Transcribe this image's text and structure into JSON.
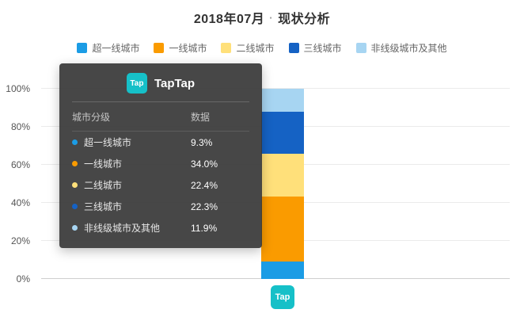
{
  "header": {
    "title_date": "2018年07月",
    "title_dot": "·",
    "title_text": "现状分析"
  },
  "chart_data": {
    "type": "bar",
    "stacked": true,
    "categories": [
      "TapTap"
    ],
    "series": [
      {
        "name": "超一线城市",
        "color": "#1b9ce5",
        "values": [
          9.3
        ]
      },
      {
        "name": "一线城市",
        "color": "#fa9b00",
        "values": [
          34.0
        ]
      },
      {
        "name": "二线城市",
        "color": "#ffe07a",
        "values": [
          22.4
        ]
      },
      {
        "name": "三线城市",
        "color": "#1562c4",
        "values": [
          22.3
        ]
      },
      {
        "name": "非线级城市及其他",
        "color": "#a7d5f2",
        "values": [
          11.9
        ]
      }
    ],
    "title": "2018年07月 · 现状分析",
    "xlabel": "",
    "ylabel": "",
    "ylim": [
      0,
      100
    ],
    "yticks": [
      "0%",
      "20%",
      "40%",
      "60%",
      "80%",
      "100%"
    ],
    "grid": true,
    "legend_position": "top"
  },
  "tooltip": {
    "brand": "TapTap",
    "brand_icon_text": "Tap",
    "col_headers": [
      "城市分级",
      "数据"
    ],
    "rows": [
      {
        "label": "超一线城市",
        "value": "9.3%"
      },
      {
        "label": "一线城市",
        "value": "34.0%"
      },
      {
        "label": "二线城市",
        "value": "22.4%"
      },
      {
        "label": "三线城市",
        "value": "22.3%"
      },
      {
        "label": "非线级城市及其他",
        "value": "11.9%"
      }
    ]
  },
  "x_axis": {
    "tick_icon_text": "Tap"
  },
  "colors": {
    "brand_teal": "#16c0c8",
    "tooltip_bg": "#373737",
    "title_text": "#333333"
  }
}
